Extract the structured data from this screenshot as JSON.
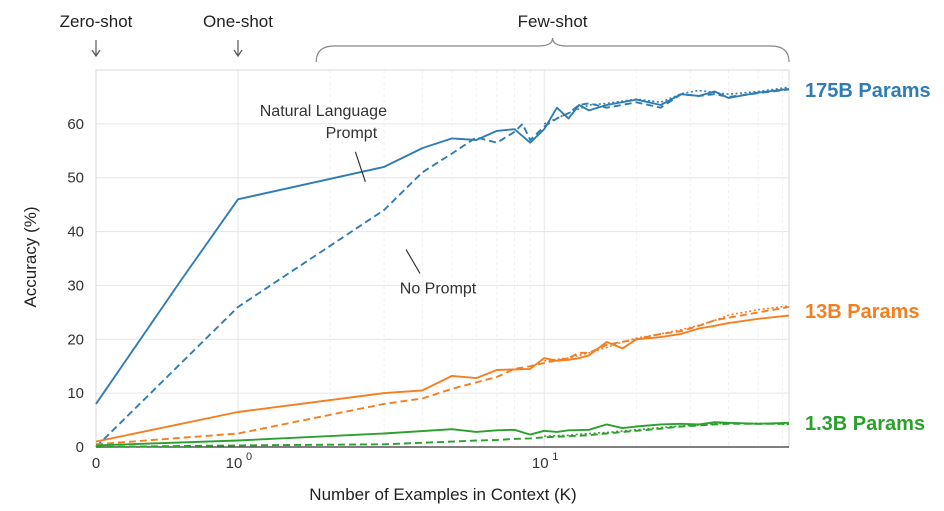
{
  "chart_data": {
    "type": "line",
    "xlabel": "Number of Examples in Context  (K)",
    "ylabel": "Accuracy (%)",
    "ylim": [
      0,
      70
    ],
    "xscale": "log (with 0)",
    "xlim": [
      0,
      63
    ],
    "x_ticks": [
      {
        "value": 0,
        "label": "0"
      },
      {
        "value": 1,
        "label": "10",
        "exp": "0"
      },
      {
        "value": 10,
        "label": "10",
        "exp": "1"
      }
    ],
    "y_ticks": [
      0,
      10,
      20,
      30,
      40,
      50,
      60
    ],
    "grid": true,
    "regimes": [
      {
        "label": "Zero-shot",
        "x": 0,
        "marker": "arrow"
      },
      {
        "label": "One-shot",
        "x": 1,
        "marker": "arrow"
      },
      {
        "label": "Few-shot",
        "x_from": 1.8,
        "x_to": 63,
        "marker": "brace"
      }
    ],
    "annotations": [
      {
        "text": "Natural Language",
        "line2": "Prompt",
        "x": 1.9,
        "y": 61.5
      },
      {
        "text": "No Prompt",
        "x": 4.5,
        "y": 28.5
      }
    ],
    "series": [
      {
        "name": "175B Params",
        "label": "175B Params",
        "color": "#2f7db4",
        "style": "solid",
        "x": [
          0,
          0.6,
          1,
          3,
          4,
          5,
          6,
          7,
          8,
          9,
          10,
          11,
          12,
          13,
          14,
          16,
          20,
          24,
          28,
          32,
          36,
          40,
          50,
          63
        ],
        "y": [
          8,
          31,
          46,
          52,
          55.5,
          57.3,
          57,
          58.7,
          59,
          56.5,
          59,
          63,
          61,
          63.5,
          62.5,
          63.5,
          64.5,
          63.5,
          65.5,
          65.2,
          66,
          64.8,
          65.8,
          66.5
        ]
      },
      {
        "name": "175B Params (no prompt)",
        "color": "#2f7db4",
        "style": "dashed",
        "x": [
          0,
          1,
          3,
          4,
          5,
          6,
          7,
          8,
          8.5,
          9,
          10,
          11,
          12,
          13,
          14,
          16,
          20,
          24,
          28,
          32,
          36,
          40,
          50,
          63
        ],
        "y": [
          0,
          26,
          44,
          51,
          54.5,
          57.5,
          56.5,
          58.5,
          60,
          57,
          59.5,
          61,
          62,
          63.5,
          63.8,
          63,
          64,
          63,
          65.5,
          65.2,
          65.5,
          65,
          65.7,
          66.4
        ]
      },
      {
        "name": "175B Params (dotted)",
        "color": "#2f7db4",
        "style": "dotted",
        "x": [
          10,
          12,
          14,
          16,
          18,
          20,
          24,
          28,
          32,
          36,
          40,
          50,
          63
        ],
        "y": [
          60,
          62,
          63.5,
          63.8,
          64.2,
          64.6,
          64,
          65.6,
          66.2,
          65.8,
          65.5,
          66,
          66.8
        ]
      },
      {
        "name": "13B Params",
        "label": "13B Params",
        "color": "#f47f20",
        "style": "solid",
        "x": [
          0,
          1,
          3,
          4,
          5,
          6,
          7,
          8,
          9,
          10,
          11,
          12,
          13,
          14,
          16,
          18,
          20,
          24,
          28,
          32,
          36,
          40,
          50,
          63
        ],
        "y": [
          1,
          6.5,
          10,
          10.5,
          13.2,
          12.8,
          14.3,
          14.4,
          14.5,
          16.5,
          16,
          16.2,
          16.5,
          17,
          19.5,
          18.3,
          20,
          20.4,
          21,
          22,
          22.5,
          23,
          23.8,
          24.4
        ]
      },
      {
        "name": "13B Params (no prompt)",
        "color": "#f47f20",
        "style": "dashed",
        "x": [
          0,
          1,
          3,
          4,
          5,
          6,
          7,
          8,
          9,
          10,
          12,
          13,
          14,
          16,
          20,
          24,
          28,
          32,
          36,
          40,
          50,
          63
        ],
        "y": [
          0.5,
          2.5,
          8,
          9,
          10.8,
          12,
          13,
          14.5,
          15,
          15.6,
          16.5,
          17.5,
          17.5,
          19,
          20,
          21,
          21.5,
          22.5,
          23.5,
          24,
          25,
          26
        ]
      },
      {
        "name": "13B Params (dotted)",
        "color": "#f47f20",
        "style": "dotted",
        "x": [
          10,
          12,
          14,
          16,
          18,
          20,
          24,
          28,
          32,
          36,
          40,
          50,
          63
        ],
        "y": [
          16,
          16.5,
          17.5,
          18.5,
          19.5,
          20.2,
          21,
          21.8,
          22.6,
          23.5,
          24.5,
          25.5,
          26.2
        ]
      },
      {
        "name": "1.3B Params",
        "label": "1.3B Params",
        "color": "#2ca02c",
        "style": "solid",
        "x": [
          0,
          1,
          3,
          5,
          6,
          7,
          8,
          9,
          10,
          11,
          12,
          14,
          16,
          18,
          20,
          24,
          28,
          32,
          36,
          40,
          50,
          63
        ],
        "y": [
          0.3,
          1.2,
          2.5,
          3.3,
          2.8,
          3.1,
          3.2,
          2.3,
          3,
          2.8,
          3.1,
          3.2,
          4.2,
          3.5,
          3.8,
          4.2,
          4.3,
          4.2,
          4.6,
          4.5,
          4.3,
          4.5
        ]
      },
      {
        "name": "1.3B Params (no prompt)",
        "color": "#2ca02c",
        "style": "dashed",
        "x": [
          0,
          1,
          3,
          5,
          6,
          7,
          8,
          9,
          10,
          12,
          14,
          16,
          20,
          24,
          28,
          32,
          36,
          40,
          50,
          63
        ],
        "y": [
          0,
          0.3,
          0.5,
          1,
          1.2,
          1.3,
          1.5,
          1.6,
          1.8,
          2,
          2.2,
          2.5,
          3,
          3.4,
          3.8,
          4,
          4.2,
          4.3,
          4.3,
          4.3
        ]
      },
      {
        "name": "1.3B Params (dotted)",
        "color": "#2ca02c",
        "style": "dotted",
        "x": [
          10,
          12,
          14,
          16,
          20,
          24,
          28,
          32,
          36,
          40,
          50,
          63
        ],
        "y": [
          2,
          2.2,
          2.5,
          2.7,
          3.2,
          3.6,
          3.9,
          4.1,
          4.3,
          4.4,
          4.4,
          4.2
        ]
      }
    ]
  }
}
